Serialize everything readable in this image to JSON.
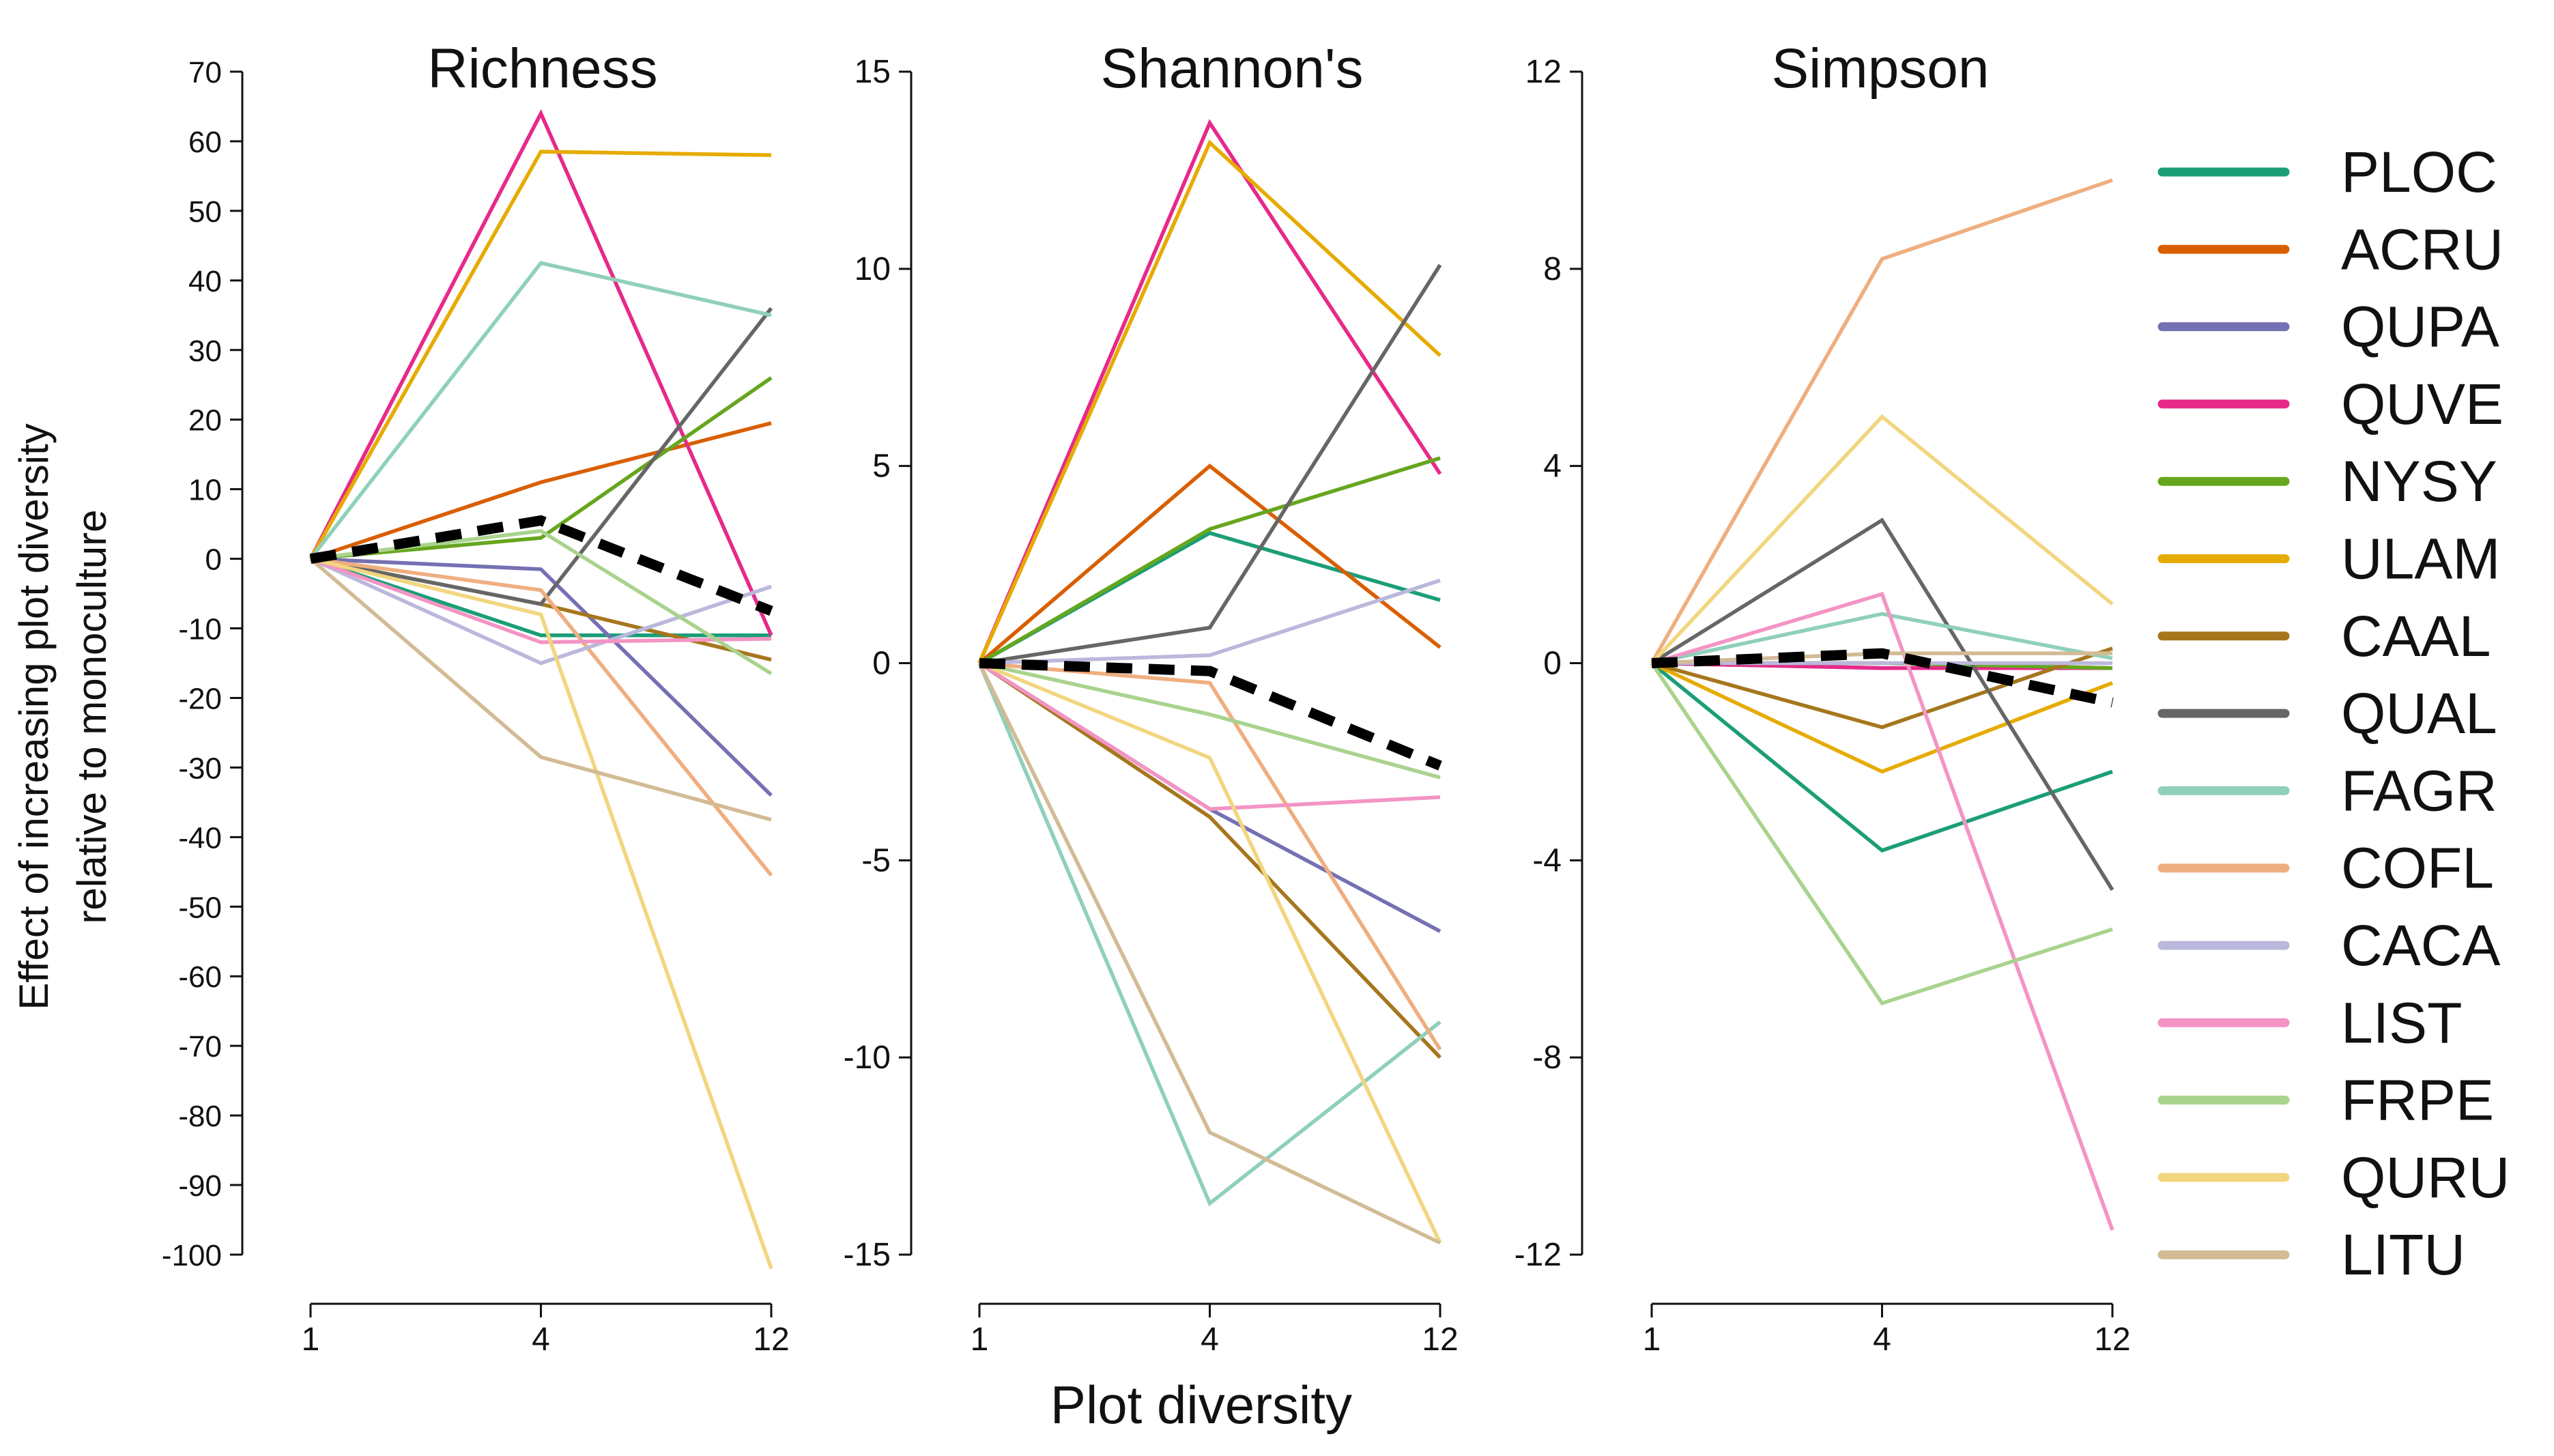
{
  "chart_data": {
    "type": "line",
    "xlabel": "Plot diversity",
    "ylabel": [
      "Effect of increasing plot diversity",
      "relative to monoculture"
    ],
    "x": [
      "1",
      "4",
      "12"
    ],
    "panels": [
      {
        "title": "Richness",
        "ylim": [
          -100,
          70
        ],
        "yticks": [
          70,
          60,
          50,
          40,
          30,
          20,
          10,
          0,
          -10,
          -20,
          -30,
          -40,
          -50,
          -60,
          -70,
          -80,
          -90,
          -100
        ],
        "series": [
          {
            "name": "PLOC",
            "values": [
              0,
              -11,
              -11
            ]
          },
          {
            "name": "ACRU",
            "values": [
              0,
              11,
              19.5
            ]
          },
          {
            "name": "QUPA",
            "values": [
              0,
              -1.5,
              -34
            ]
          },
          {
            "name": "QUVE",
            "values": [
              0,
              64,
              -11
            ]
          },
          {
            "name": "NYSY",
            "values": [
              0,
              3,
              26
            ]
          },
          {
            "name": "ULAM",
            "values": [
              0,
              58.5,
              58
            ]
          },
          {
            "name": "CAAL",
            "values": [
              0,
              -6.5,
              -14.5
            ]
          },
          {
            "name": "QUAL",
            "values": [
              0,
              -6.5,
              36
            ]
          },
          {
            "name": "FAGR",
            "values": [
              0,
              42.5,
              35
            ]
          },
          {
            "name": "COFL",
            "values": [
              0,
              -4.5,
              -45.5
            ]
          },
          {
            "name": "CACA",
            "values": [
              0,
              -15,
              -4
            ]
          },
          {
            "name": "LIST",
            "values": [
              0,
              -12,
              -11.5
            ]
          },
          {
            "name": "FRPE",
            "values": [
              0,
              4,
              -16.5
            ]
          },
          {
            "name": "QURU",
            "values": [
              0,
              -8,
              -102
            ]
          },
          {
            "name": "LITU",
            "values": [
              0,
              -28.5,
              -37.5
            ]
          },
          {
            "name": "Mean",
            "values": [
              0,
              5.5,
              -7.5
            ]
          }
        ]
      },
      {
        "title": "Shannon's",
        "ylim": [
          -15,
          15
        ],
        "yticks": [
          15,
          10,
          5,
          0,
          -5,
          -10,
          -15
        ],
        "series": [
          {
            "name": "PLOC",
            "values": [
              0,
              3.3,
              1.6
            ]
          },
          {
            "name": "ACRU",
            "values": [
              0,
              5,
              0.4
            ]
          },
          {
            "name": "QUPA",
            "values": [
              0,
              -3.7,
              -6.8
            ]
          },
          {
            "name": "QUVE",
            "values": [
              0,
              13.7,
              4.8
            ]
          },
          {
            "name": "NYSY",
            "values": [
              0,
              3.4,
              5.2
            ]
          },
          {
            "name": "ULAM",
            "values": [
              0,
              13.2,
              7.8
            ]
          },
          {
            "name": "CAAL",
            "values": [
              0,
              -3.9,
              -10
            ]
          },
          {
            "name": "QUAL",
            "values": [
              0,
              0.9,
              10.1
            ]
          },
          {
            "name": "FAGR",
            "values": [
              0,
              -13.7,
              -9.1
            ]
          },
          {
            "name": "COFL",
            "values": [
              0,
              -0.5,
              -9.8
            ]
          },
          {
            "name": "CACA",
            "values": [
              0,
              0.2,
              2.1
            ]
          },
          {
            "name": "LIST",
            "values": [
              0,
              -3.7,
              -3.4
            ]
          },
          {
            "name": "FRPE",
            "values": [
              0,
              -1.3,
              -2.9
            ]
          },
          {
            "name": "QURU",
            "values": [
              0,
              -2.4,
              -14.7
            ]
          },
          {
            "name": "LITU",
            "values": [
              0,
              -11.9,
              -14.7
            ]
          },
          {
            "name": "Mean",
            "values": [
              0,
              -0.2,
              -2.6
            ]
          }
        ]
      },
      {
        "title": "Simpson",
        "ylim": [
          -12,
          12
        ],
        "yticks": [
          12,
          8,
          4,
          0,
          -4,
          -8,
          -12
        ],
        "series": [
          {
            "name": "PLOC",
            "values": [
              0,
              -3.8,
              -2.2
            ]
          },
          {
            "name": "ACRU",
            "values": [
              0,
              0,
              -0.1
            ]
          },
          {
            "name": "QUPA",
            "values": [
              0,
              -0.1,
              -0.1
            ]
          },
          {
            "name": "QUVE",
            "values": [
              0,
              -0.1,
              -0.1
            ]
          },
          {
            "name": "NYSY",
            "values": [
              0,
              0,
              -0.1
            ]
          },
          {
            "name": "ULAM",
            "values": [
              0,
              -2.2,
              -0.4
            ]
          },
          {
            "name": "CAAL",
            "values": [
              0,
              -1.3,
              0.3
            ]
          },
          {
            "name": "QUAL",
            "values": [
              0,
              2.9,
              -4.6
            ]
          },
          {
            "name": "FAGR",
            "values": [
              0,
              1,
              0.1
            ]
          },
          {
            "name": "COFL",
            "values": [
              0,
              8.2,
              9.8
            ]
          },
          {
            "name": "CACA",
            "values": [
              0,
              0,
              0
            ]
          },
          {
            "name": "LIST",
            "values": [
              0,
              1.4,
              -11.5
            ]
          },
          {
            "name": "FRPE",
            "values": [
              0,
              -6.9,
              -5.4
            ]
          },
          {
            "name": "QURU",
            "values": [
              0,
              5,
              1.2
            ]
          },
          {
            "name": "LITU",
            "values": [
              0,
              0.2,
              0.2
            ]
          },
          {
            "name": "Mean",
            "values": [
              0,
              0.2,
              -0.8
            ]
          }
        ]
      }
    ],
    "legend": [
      {
        "name": "PLOC",
        "color": "#1b9e77"
      },
      {
        "name": "ACRU",
        "color": "#d95f02"
      },
      {
        "name": "QUPA",
        "color": "#7570b3"
      },
      {
        "name": "QUVE",
        "color": "#e7298a"
      },
      {
        "name": "NYSY",
        "color": "#66a61e"
      },
      {
        "name": "ULAM",
        "color": "#e6ab02"
      },
      {
        "name": "CAAL",
        "color": "#a6761d"
      },
      {
        "name": "QUAL",
        "color": "#666666"
      },
      {
        "name": "FAGR",
        "color": "#8fd0bb"
      },
      {
        "name": "COFL",
        "color": "#efae7f"
      },
      {
        "name": "CACA",
        "color": "#bab8dc"
      },
      {
        "name": "LIST",
        "color": "#f394c4"
      },
      {
        "name": "FRPE",
        "color": "#a9d38e"
      },
      {
        "name": "QURU",
        "color": "#f2d67f"
      },
      {
        "name": "LITU",
        "color": "#d2bb95"
      }
    ],
    "legend_position": "right",
    "mean_series_style": "black dashed",
    "grid": false
  }
}
